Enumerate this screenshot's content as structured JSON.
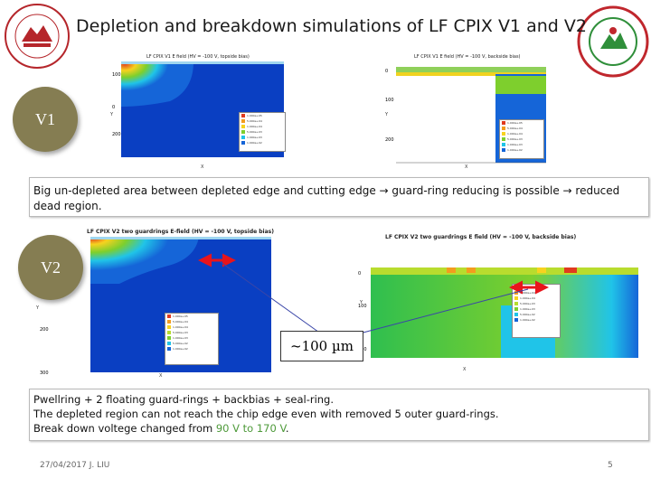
{
  "slide": {
    "title": "Depletion and breakdown simulations of LF CPIX V1 and V2",
    "footer_date": "27/04/2017 J. LIU",
    "page_number": "5"
  },
  "badges": {
    "v1": "V1",
    "v2": "V2"
  },
  "sims": {
    "v1_top": {
      "title": "LF CPIX V1 E field (HV = -100 V, topside bias)",
      "y_label": "Y",
      "x_label": "X"
    },
    "v1_back": {
      "title": "LF CPIX V1 E field (HV = -100 V, backside bias)",
      "y_label": "Y",
      "x_label": "X"
    },
    "v2_top": {
      "title": "LF CPIX V2 two guardrings E-field (HV = -100 V, topside bias)",
      "y_label": "Y",
      "x_label": "X"
    },
    "v2_back": {
      "title": "LF CPIX V2 two guardrings E field (HV = -100 V, backside bias)",
      "y_label": "Y",
      "x_label": "X"
    }
  },
  "textbox1": {
    "text": "Big un-depleted area between depleted edge and cutting edge → guard-ring reducing is possible → reduced dead region."
  },
  "callout": {
    "text": "~100 µm"
  },
  "textbox2": {
    "line1": "Pwellring + 2 floating guard-rings + backbias + seal-ring.",
    "line2": "The depleted region can not reach the chip edge even with removed 5 outer guard-rings.",
    "line3_prefix": "Break down voltege changed from ",
    "line3_highlight": "90 V to 170 V",
    "line3_suffix": "."
  },
  "colors": {
    "highlight_green": "#4e9a3a",
    "arrow_red": "#e8141b",
    "badge_olive": "#857d52"
  }
}
